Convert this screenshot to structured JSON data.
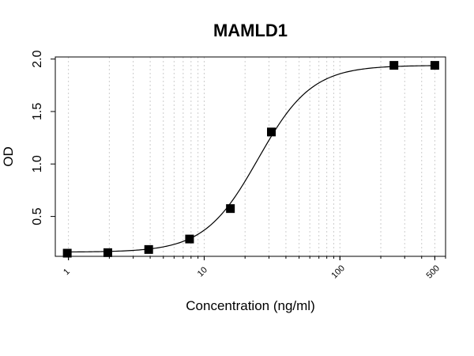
{
  "chart_data": {
    "type": "scatter",
    "title": "MAMLD1",
    "xlabel": "Concentration (ng/ml)",
    "ylabel": "OD",
    "x_scale": "log",
    "xlim": [
      0.8,
      600
    ],
    "ylim": [
      0.12,
      2.02
    ],
    "x_ticks": [
      {
        "value": 1,
        "label": "1"
      },
      {
        "value": 10,
        "label": "10"
      },
      {
        "value": 100,
        "label": "100"
      },
      {
        "value": 500,
        "label": "500"
      }
    ],
    "y_ticks": [
      {
        "value": 0.5,
        "label": "0.5"
      },
      {
        "value": 1.0,
        "label": "1.0"
      },
      {
        "value": 1.5,
        "label": "1.5"
      },
      {
        "value": 2.0,
        "label": "2.0"
      }
    ],
    "grid": "vertical dotted (log minor)",
    "points": [
      {
        "x": 0.98,
        "y": 0.15
      },
      {
        "x": 1.95,
        "y": 0.155
      },
      {
        "x": 3.9,
        "y": 0.185
      },
      {
        "x": 7.8,
        "y": 0.285
      },
      {
        "x": 15.6,
        "y": 0.575
      },
      {
        "x": 31.25,
        "y": 1.305
      },
      {
        "x": 250,
        "y": 1.94
      },
      {
        "x": 500,
        "y": 1.94
      }
    ],
    "fit_curve": {
      "type": "4PL",
      "bottom": 0.16,
      "top": 1.94,
      "ec50": 25,
      "hill": 2.2
    },
    "colors": {
      "points": "#000000",
      "curve": "#000000",
      "grid": "#cccccc"
    }
  }
}
